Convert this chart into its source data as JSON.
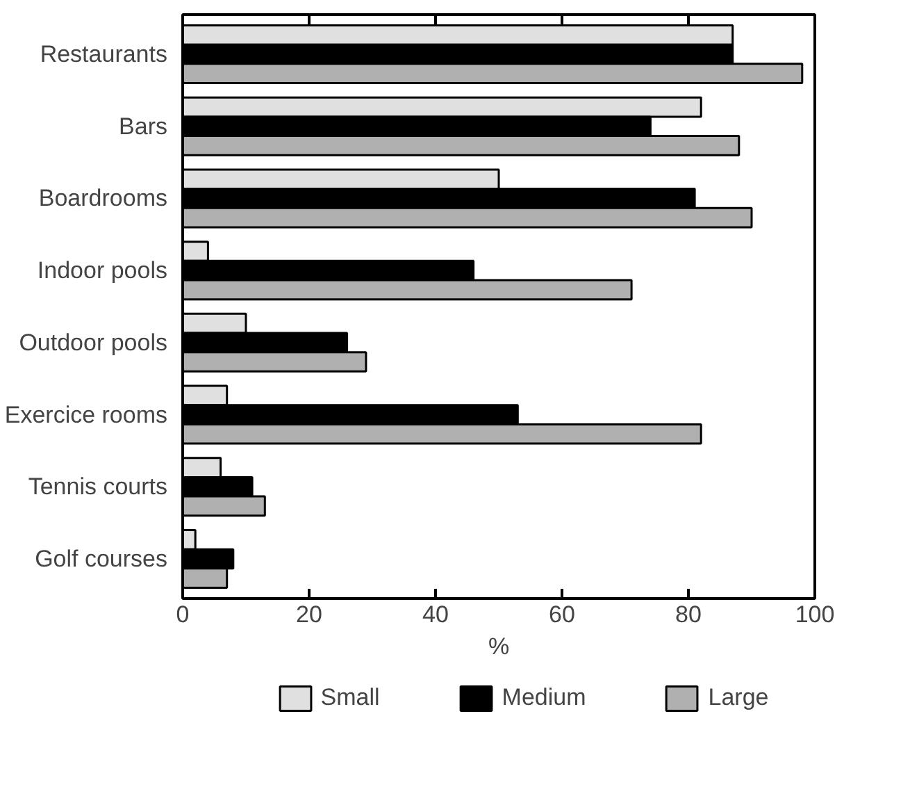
{
  "chart_data": {
    "type": "bar",
    "orientation": "horizontal",
    "xlabel": "%",
    "categories": [
      "Restaurants",
      "Bars",
      "Boardrooms",
      "Indoor pools",
      "Outdoor pools",
      "Exercice rooms",
      "Tennis courts",
      "Golf courses"
    ],
    "series": [
      {
        "name": "Small",
        "color": "#e0e0e0",
        "values": [
          87,
          82,
          50,
          4,
          10,
          7,
          6,
          2
        ]
      },
      {
        "name": "Medium",
        "color": "#000000",
        "values": [
          87,
          74,
          81,
          46,
          26,
          53,
          11,
          8
        ]
      },
      {
        "name": "Large",
        "color": "#b0b0b0",
        "values": [
          98,
          88,
          90,
          71,
          29,
          82,
          13,
          7
        ]
      }
    ],
    "xlim": [
      0,
      100
    ],
    "xticks": [
      0,
      20,
      40,
      60,
      80,
      100
    ],
    "grid": false,
    "legend": "bottom"
  }
}
